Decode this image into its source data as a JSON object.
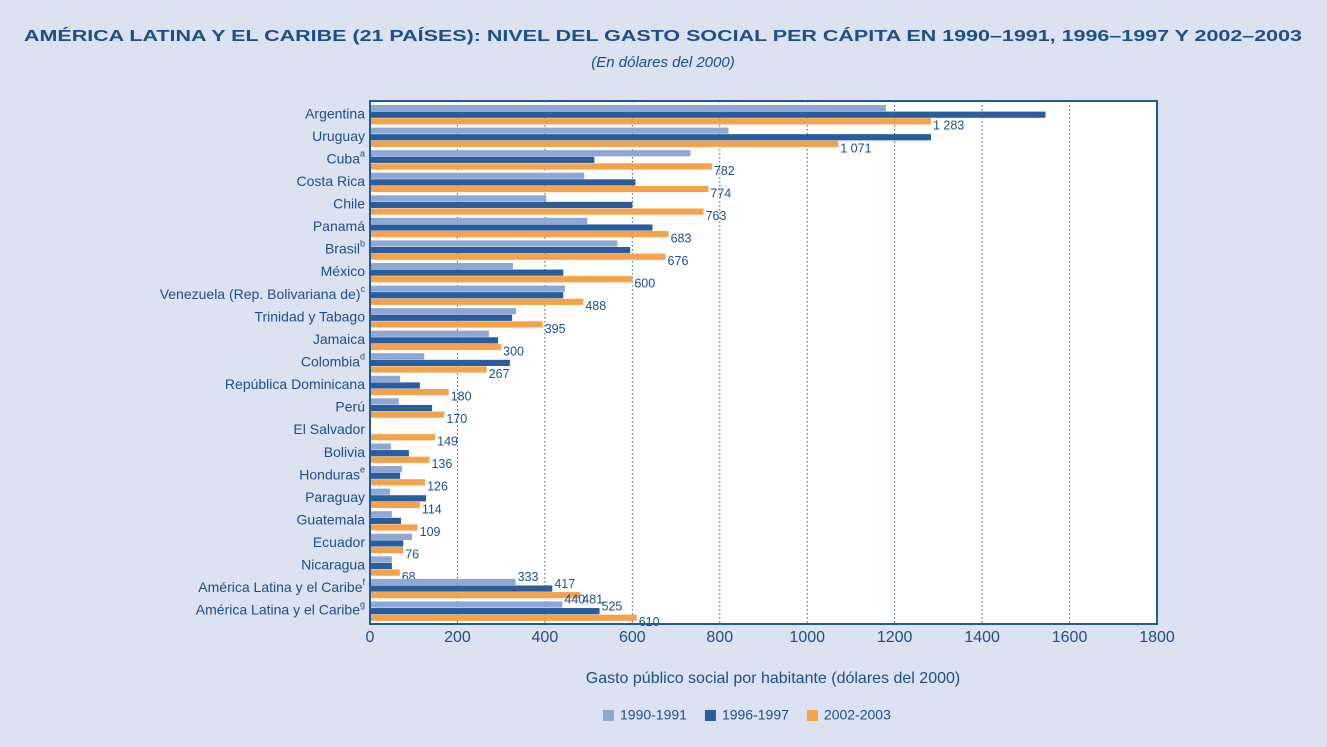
{
  "chart_data": {
    "type": "hbar",
    "title": "AMÉRICA LATINA Y EL CARIBE (21 PAÍSES): NIVEL DEL GASTO SOCIAL PER CÁPITA EN 1990–1991, 1996–1997 Y 2002–2003",
    "subtitle": "(En dólares del 2000)",
    "x_label": "Gasto público social por habitante (dólares del 2000)",
    "categories": [
      "Argentina",
      "Uruguay",
      "Cuba",
      "Costa Rica",
      "Chile",
      "Panamá",
      "Brasil",
      "México",
      "Venezuela (Rep. Bolivariana de)",
      "Trinidad y Tabago",
      "Jamaica",
      "Colombia",
      "República Dominicana",
      "Perú",
      "El Salvador",
      "Bolivia",
      "Honduras",
      "Paraguay",
      "Guatemala",
      "Ecuador",
      "Nicaragua",
      "América Latina y el Caribe",
      "América Latina y el Caribe"
    ],
    "category_notes": [
      null,
      null,
      "a",
      null,
      null,
      null,
      "b",
      null,
      "c",
      null,
      null,
      "d",
      null,
      null,
      null,
      null,
      "e",
      null,
      null,
      null,
      null,
      "f",
      "g"
    ],
    "series": [
      {
        "name": "1990-1991",
        "color": "#8fa8d2",
        "values": [
          1180,
          820,
          733,
          490,
          403,
          497,
          566,
          327,
          446,
          334,
          272,
          124,
          69,
          66,
          null,
          48,
          73,
          46,
          50,
          96,
          50,
          333,
          440
        ],
        "value_labels": [
          null,
          null,
          null,
          null,
          null,
          null,
          null,
          null,
          null,
          null,
          null,
          null,
          null,
          null,
          null,
          null,
          null,
          null,
          null,
          null,
          null,
          "333",
          "440"
        ]
      },
      {
        "name": "1996-1997",
        "color": "#2a5d9c",
        "values": [
          1545,
          1283,
          513,
          607,
          600,
          646,
          595,
          442,
          442,
          325,
          293,
          320,
          114,
          142,
          null,
          89,
          69,
          128,
          71,
          76,
          50,
          417,
          525
        ],
        "value_labels": [
          null,
          null,
          null,
          null,
          null,
          null,
          null,
          null,
          null,
          null,
          null,
          null,
          null,
          null,
          null,
          null,
          null,
          null,
          null,
          null,
          null,
          "417",
          "525"
        ]
      },
      {
        "name": "2002-2003",
        "color": "#f5a24a",
        "values": [
          1283,
          1071,
          782,
          774,
          763,
          683,
          676,
          600,
          488,
          395,
          300,
          267,
          180,
          170,
          149,
          136,
          126,
          114,
          109,
          76,
          68,
          481,
          610
        ],
        "value_labels": [
          "1 283",
          "1 071",
          "782",
          "774",
          "763",
          "683",
          "676",
          "600",
          "488",
          "395",
          "300",
          "267",
          "180",
          "170",
          "149",
          "136",
          "126",
          "114",
          "109",
          "76",
          "68",
          "481",
          "610"
        ]
      }
    ],
    "xlim": [
      0,
      1800
    ],
    "xticks": [
      0,
      200,
      400,
      600,
      800,
      1000,
      1200,
      1400,
      1600,
      1800
    ],
    "grid": true
  }
}
